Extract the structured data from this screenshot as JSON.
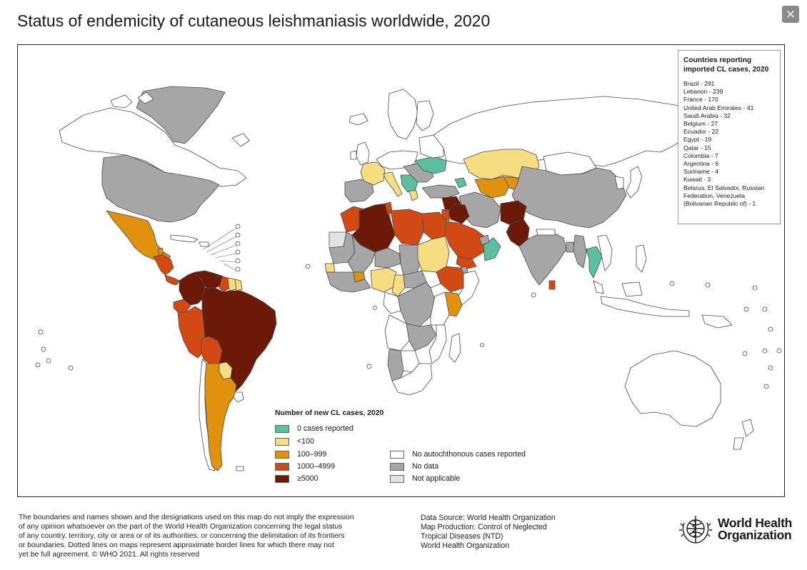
{
  "header": {
    "title": "Status of endemicity of cutaneous leishmaniasis worldwide, 2020",
    "close_label": "×"
  },
  "colors": {
    "zero_cases": "#5bbfa0",
    "lt_100": "#f7dd82",
    "100_999": "#e0920f",
    "1000_4999": "#d14a14",
    "ge_5000": "#6b1a08",
    "no_autochthonous": "#ffffff",
    "no_data": "#a6a6a6",
    "not_applicable": "#e2e2e2",
    "outline": "#4a4a4a"
  },
  "imported": {
    "title": "Countries reporting imported CL cases, 2020",
    "items": [
      "Brazil - 291",
      "Lebanon - 239",
      "France - 170",
      "United Arab Emirates - 41",
      "Saudi Arabia - 32",
      "Belgium - 27",
      "Ecuador - 22",
      "Egypt - 19",
      "Qatar - 15",
      "Colombia - 7",
      "Argentina - 6",
      "Suriname - 4",
      "Kuwait - 3",
      "Belarus, El Salvador, Russian Federation, Venezuela (Bolivarian Republic of) - 1"
    ]
  },
  "legend": {
    "title": "Number of new CL cases, 2020",
    "cases": [
      {
        "label": "0 cases reported",
        "color": "#5bbfa0"
      },
      {
        "label": "<100",
        "color": "#f7dd82"
      },
      {
        "label": "100–999",
        "color": "#e0920f"
      },
      {
        "label": "1000–4999",
        "color": "#d14a14"
      },
      {
        "label": "≥5000",
        "color": "#6b1a08"
      }
    ],
    "status": [
      {
        "label": "No autochthonous cases reported",
        "color": "#ffffff"
      },
      {
        "label": "No data",
        "color": "#a6a6a6"
      },
      {
        "label": "Not applicable",
        "color": "#e2e2e2"
      }
    ]
  },
  "footer": {
    "disclaimer_lines": [
      "The boundaries and names shown and the designations used on this map do not imply the expression",
      "of any opinion whatsoever on the part of the World Health Organization concerning the legal status",
      "of any country, territory, city or area or of its authorities, or concerning the delimitation of its frontiers",
      "or boundaries. Dotted lines on maps represent approximate border lines for which there may not",
      "yet be full agreement. © WHO 2021. All rights reserved"
    ],
    "source_lines": [
      "Data Source: World Health Organization",
      "Map Production: Control of Neglected",
      "Tropical Diseases (NTD)",
      "World Health Organization"
    ],
    "org_line1": "World Health",
    "org_line2": "Organization"
  }
}
